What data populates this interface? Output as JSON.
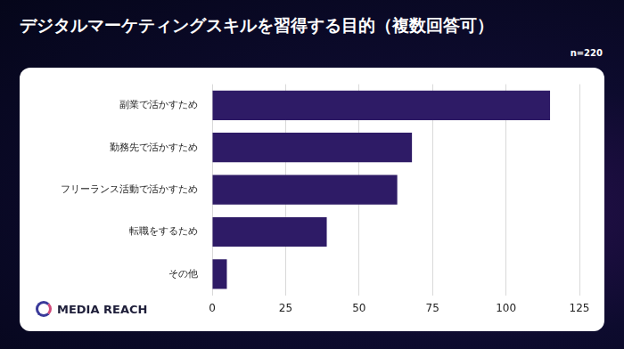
{
  "chart_data": {
    "type": "bar",
    "orientation": "horizontal",
    "title": "デジタルマーケティングスキルを習得する目的（複数回答可）",
    "subtitle": "n=220",
    "annotations": [
      "MEDIA REACH"
    ],
    "categories": [
      "副業で活かすため",
      "勤務先で活かすため",
      "フリーランス活動で活かすため",
      "転職をするため",
      "その他"
    ],
    "values": [
      115,
      68,
      63,
      39,
      5
    ],
    "color": "#2e1b66",
    "xlim": [
      0,
      125
    ],
    "xticks": [
      0,
      25,
      50,
      75,
      100,
      125
    ],
    "grid": true
  }
}
